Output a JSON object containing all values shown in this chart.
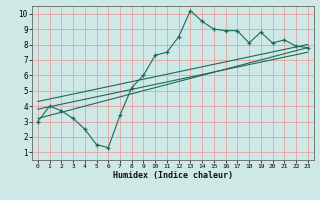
{
  "title": "",
  "xlabel": "Humidex (Indice chaleur)",
  "bg_color": "#cde8e5",
  "grid_color": "#e8a0a0",
  "line_color": "#1a6b5a",
  "xlim": [
    -0.5,
    23.5
  ],
  "ylim": [
    0.5,
    10.5
  ],
  "xticks": [
    0,
    1,
    2,
    3,
    4,
    5,
    6,
    7,
    8,
    9,
    10,
    11,
    12,
    13,
    14,
    15,
    16,
    17,
    18,
    19,
    20,
    21,
    22,
    23
  ],
  "yticks": [
    1,
    2,
    3,
    4,
    5,
    6,
    7,
    8,
    9,
    10
  ],
  "main_x": [
    0,
    1,
    2,
    3,
    4,
    5,
    6,
    7,
    8,
    9,
    10,
    11,
    12,
    13,
    14,
    15,
    16,
    17,
    18,
    19,
    20,
    21,
    22,
    23
  ],
  "main_y": [
    3.0,
    4.0,
    3.7,
    3.2,
    2.5,
    1.5,
    1.3,
    3.4,
    5.2,
    6.0,
    7.3,
    7.5,
    8.5,
    10.2,
    9.5,
    9.0,
    8.9,
    8.9,
    8.1,
    8.8,
    8.1,
    8.3,
    7.9,
    7.8
  ],
  "line1_x": [
    0,
    23
  ],
  "line1_y": [
    3.2,
    7.8
  ],
  "line2_x": [
    0,
    23
  ],
  "line2_y": [
    3.8,
    7.5
  ],
  "line3_x": [
    0,
    23
  ],
  "line3_y": [
    4.3,
    8.0
  ]
}
